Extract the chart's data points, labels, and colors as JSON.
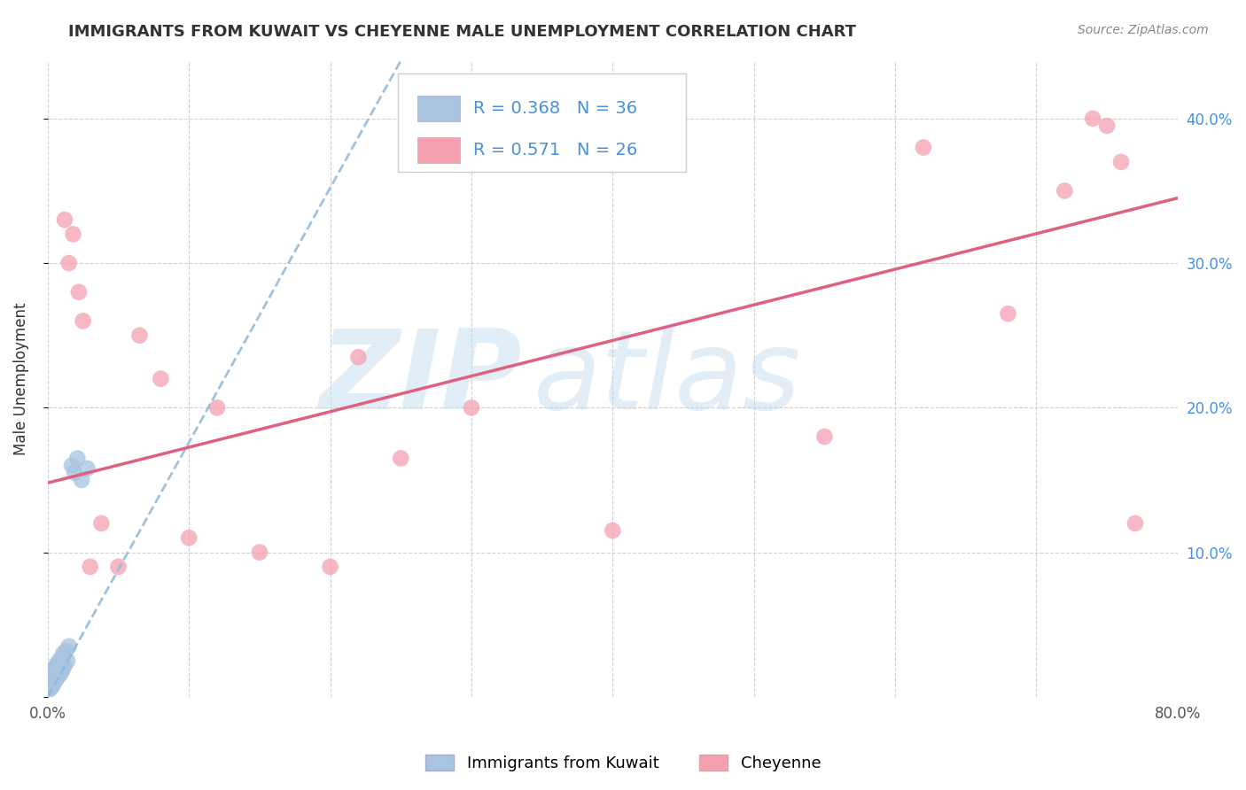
{
  "title": "IMMIGRANTS FROM KUWAIT VS CHEYENNE MALE UNEMPLOYMENT CORRELATION CHART",
  "source": "Source: ZipAtlas.com",
  "ylabel": "Male Unemployment",
  "watermark_zip": "ZIP",
  "watermark_atlas": "atlas",
  "xlim": [
    0.0,
    0.8
  ],
  "ylim": [
    0.0,
    0.44
  ],
  "xticks": [
    0.0,
    0.1,
    0.2,
    0.3,
    0.4,
    0.5,
    0.6,
    0.7,
    0.8
  ],
  "xticklabels": [
    "0.0%",
    "",
    "",
    "",
    "",
    "",
    "",
    "",
    "80.0%"
  ],
  "yticks": [
    0.0,
    0.1,
    0.2,
    0.3,
    0.4
  ],
  "yticklabels": [
    "",
    "10.0%",
    "20.0%",
    "30.0%",
    "40.0%"
  ],
  "legend1_label": "Immigrants from Kuwait",
  "legend2_label": "Cheyenne",
  "r1": 0.368,
  "n1": 36,
  "r2": 0.571,
  "n2": 26,
  "color_blue": "#a8c4e0",
  "color_pink": "#f4a0b0",
  "line_blue": "#90b8d8",
  "line_pink": "#e06080",
  "blue_scatter_x": [
    0.001,
    0.001,
    0.002,
    0.002,
    0.003,
    0.003,
    0.003,
    0.004,
    0.004,
    0.004,
    0.005,
    0.005,
    0.005,
    0.006,
    0.006,
    0.006,
    0.007,
    0.007,
    0.008,
    0.008,
    0.008,
    0.009,
    0.009,
    0.01,
    0.01,
    0.011,
    0.011,
    0.012,
    0.013,
    0.014,
    0.015,
    0.017,
    0.019,
    0.021,
    0.024,
    0.028
  ],
  "blue_scatter_y": [
    0.005,
    0.008,
    0.006,
    0.012,
    0.007,
    0.01,
    0.015,
    0.009,
    0.013,
    0.018,
    0.011,
    0.016,
    0.02,
    0.012,
    0.017,
    0.022,
    0.014,
    0.019,
    0.015,
    0.021,
    0.025,
    0.016,
    0.023,
    0.018,
    0.027,
    0.02,
    0.03,
    0.022,
    0.032,
    0.025,
    0.035,
    0.16,
    0.155,
    0.165,
    0.15,
    0.158
  ],
  "pink_scatter_x": [
    0.012,
    0.015,
    0.018,
    0.022,
    0.025,
    0.03,
    0.038,
    0.05,
    0.065,
    0.08,
    0.1,
    0.12,
    0.15,
    0.2,
    0.22,
    0.25,
    0.3,
    0.4,
    0.55,
    0.62,
    0.68,
    0.72,
    0.74,
    0.75,
    0.76,
    0.77
  ],
  "pink_scatter_y": [
    0.33,
    0.3,
    0.32,
    0.28,
    0.26,
    0.09,
    0.12,
    0.09,
    0.25,
    0.22,
    0.11,
    0.2,
    0.1,
    0.09,
    0.235,
    0.165,
    0.2,
    0.115,
    0.18,
    0.38,
    0.265,
    0.35,
    0.4,
    0.395,
    0.37,
    0.12
  ],
  "blue_line_x0": 0.0,
  "blue_line_y0": 0.0,
  "blue_line_x1": 0.25,
  "blue_line_y1": 0.44,
  "pink_line_x0": 0.0,
  "pink_line_y0": 0.148,
  "pink_line_x1": 0.8,
  "pink_line_y1": 0.345,
  "background_color": "#ffffff",
  "grid_color": "#cccccc",
  "title_color": "#333333",
  "right_ytick_color": "#4a90d9"
}
